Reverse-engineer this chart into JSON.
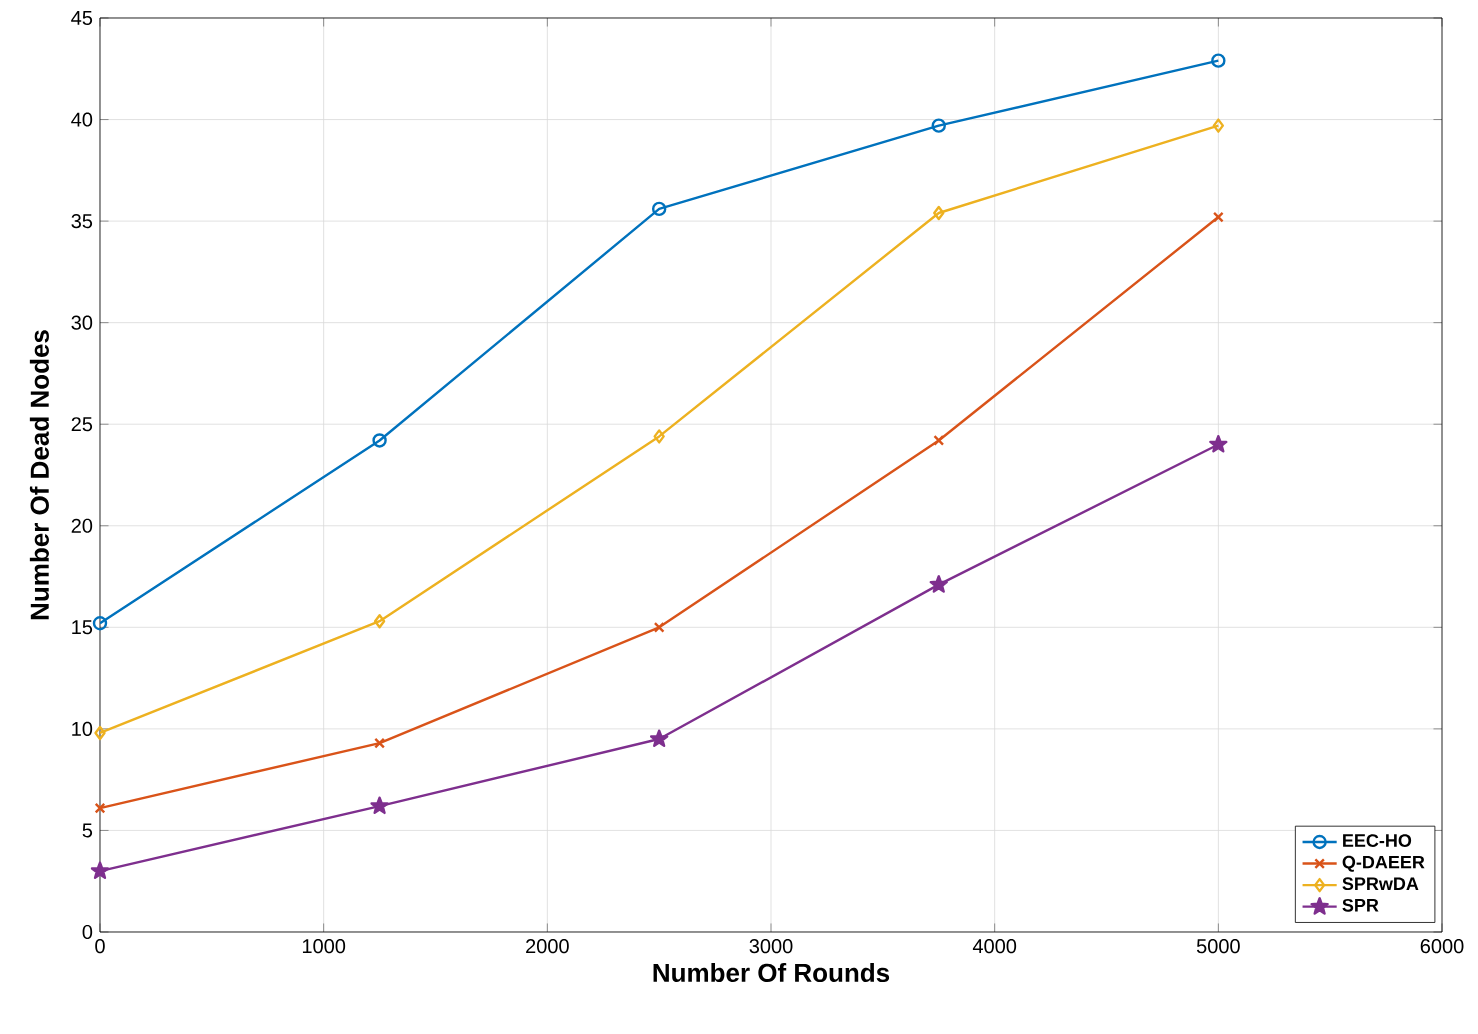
{
  "chart_data": {
    "type": "line",
    "xlabel": "Number Of Rounds",
    "ylabel": "Number Of Dead Nodes",
    "x": [
      0,
      1250,
      2500,
      3750,
      5000
    ],
    "series": [
      {
        "name": "EEC-HO",
        "color": "#0072bd",
        "marker": "circle",
        "values": [
          15.2,
          24.2,
          35.6,
          39.7,
          42.9
        ]
      },
      {
        "name": "Q-DAEER",
        "color": "#d95319",
        "marker": "cross",
        "values": [
          6.1,
          9.3,
          15.0,
          24.2,
          35.2
        ]
      },
      {
        "name": "SPRwDA",
        "color": "#edb120",
        "marker": "diamond",
        "values": [
          9.8,
          15.3,
          24.4,
          35.4,
          39.7
        ]
      },
      {
        "name": "SPR",
        "color": "#7e2f8e",
        "marker": "star",
        "values": [
          3.0,
          6.2,
          9.5,
          17.1,
          24.0
        ]
      }
    ],
    "xlim": [
      0,
      6000
    ],
    "xticks": [
      0,
      1000,
      2000,
      3000,
      4000,
      5000,
      6000
    ],
    "ylim": [
      0,
      45
    ],
    "yticks": [
      0,
      5,
      10,
      15,
      20,
      25,
      30,
      35,
      40,
      45
    ],
    "grid": true,
    "legend": "bottom right",
    "line_style": "solid"
  }
}
